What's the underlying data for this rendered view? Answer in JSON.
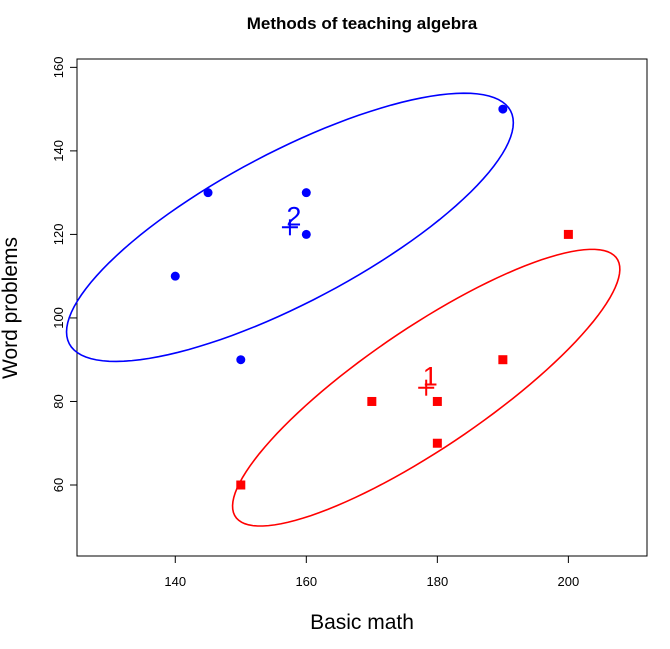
{
  "chart_data": {
    "type": "scatter",
    "title": "Methods of teaching algebra",
    "xlabel": "Basic math",
    "ylabel": "Word problems",
    "xlim": [
      125,
      212
    ],
    "ylim": [
      43,
      162
    ],
    "x_ticks": [
      140,
      160,
      180,
      200
    ],
    "y_ticks": [
      60,
      80,
      100,
      120,
      140,
      160
    ],
    "grid": false,
    "series": [
      {
        "group": "1",
        "color": "#ff0000",
        "marker": "square",
        "points": [
          [
            150,
            60
          ],
          [
            170,
            80
          ],
          [
            180,
            80
          ],
          [
            180,
            70
          ],
          [
            190,
            90
          ],
          [
            200,
            120
          ]
        ],
        "centroid": [
          178.3,
          83.3
        ],
        "centroid_label": "1",
        "ellipse": {
          "center": [
            178.3,
            83.3
          ],
          "radius_major": 42.8,
          "radius_minor": 11.8,
          "angle_deg": 48.8
        }
      },
      {
        "group": "2",
        "color": "#0000ff",
        "marker": "circle",
        "points": [
          [
            140,
            110
          ],
          [
            145,
            130
          ],
          [
            150,
            90
          ],
          [
            160,
            130
          ],
          [
            160,
            120
          ],
          [
            190,
            150
          ]
        ],
        "centroid": [
          157.5,
          121.7
        ],
        "centroid_label": "2",
        "ellipse": {
          "center": [
            157.5,
            121.7
          ],
          "radius_major": 44.2,
          "radius_minor": 15.5,
          "angle_deg": 42.8
        }
      }
    ]
  }
}
